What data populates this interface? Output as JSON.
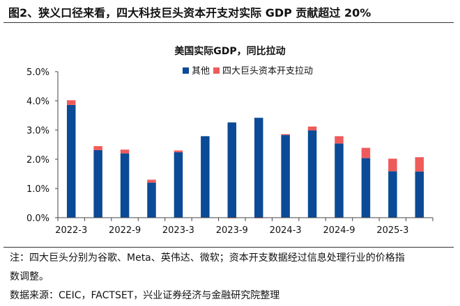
{
  "figure_title": "图2、狭义口径来看，四大科技巨头资本开支对实际 GDP 贡献超过 20%",
  "notes": {
    "note_line1": "注：四大巨头分别为谷歌、Meta、英伟达、微软；资本开支数据经过信息处理行业的价格指",
    "note_line2": "数调整。",
    "source": "数据来源：CEIC，FACTSET，兴业证券经济与金融研究院整理"
  },
  "chart_data": {
    "type": "bar",
    "stacked": true,
    "title": "美国实际GDP，同比拉动",
    "xlabel": "",
    "ylabel": "",
    "ylim": [
      0,
      5.0
    ],
    "yticks": [
      "0.0%",
      "1.0%",
      "2.0%",
      "3.0%",
      "4.0%",
      "5.0%"
    ],
    "categories": [
      "2022-3",
      "2022-6",
      "2022-9",
      "2022-12",
      "2023-3",
      "2023-6",
      "2023-9",
      "2023-12",
      "2024-3",
      "2024-6",
      "2024-9",
      "2024-12",
      "2025-3",
      "2025-6"
    ],
    "xtick_labels": [
      "2022-3",
      "2022-9",
      "2023-3",
      "2023-9",
      "2024-3",
      "2024-9",
      "2025-3"
    ],
    "legend_position": "top-right",
    "grid": false,
    "series": [
      {
        "name": "其他",
        "color": "#0b4a96",
        "values": [
          3.86,
          2.31,
          2.2,
          1.2,
          2.24,
          2.79,
          3.26,
          3.42,
          2.83,
          2.99,
          2.54,
          2.04,
          1.59,
          1.58
        ]
      },
      {
        "name": "四大巨头资本开支拉动",
        "color": "#ef5b5b",
        "values": [
          0.16,
          0.14,
          0.13,
          0.1,
          0.06,
          0.0,
          -0.02,
          -0.01,
          0.03,
          0.13,
          0.25,
          0.35,
          0.43,
          0.49
        ]
      }
    ]
  }
}
